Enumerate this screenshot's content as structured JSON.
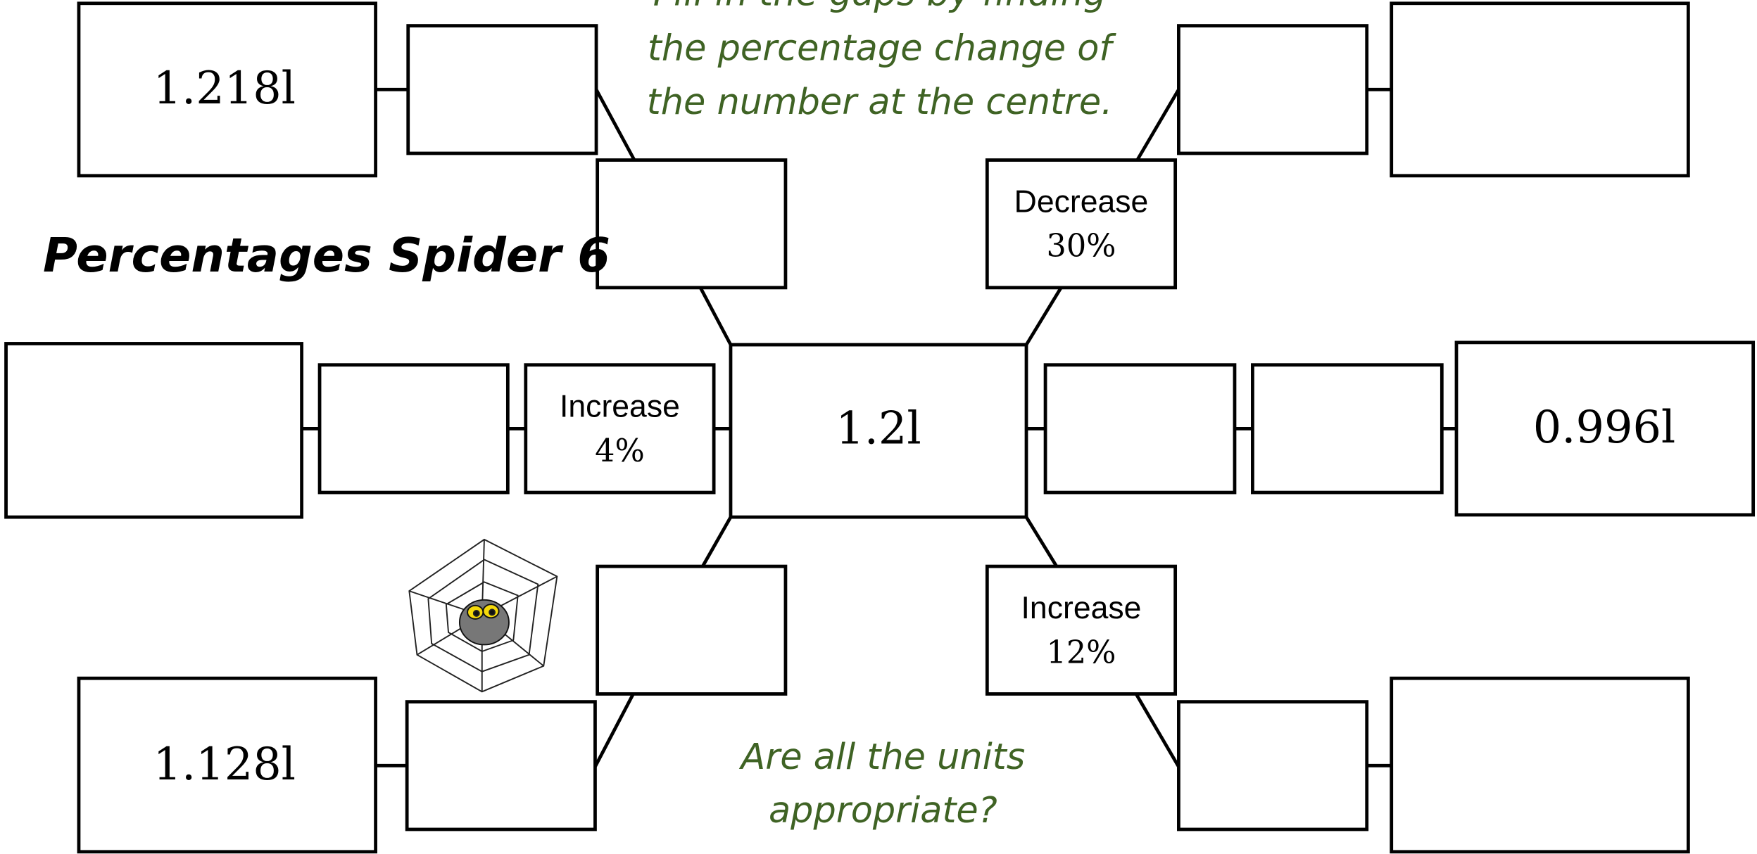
{
  "title": "Percentages Spider 6",
  "instructions": [
    "Fill in the gaps by finding",
    "the percentage change of",
    "the number at the centre."
  ],
  "question": [
    "Are all the units",
    "appropriate?"
  ],
  "centre": "1.2l",
  "top_left": {
    "answer": "1.218l"
  },
  "top_right": {
    "operation": [
      "Decrease",
      "30%"
    ]
  },
  "left": {
    "operation": [
      "Increase",
      "4%"
    ]
  },
  "right": {
    "answer": "0.996l"
  },
  "bottom_left": {
    "answer": "1.128l"
  },
  "bottom_right": {
    "operation": [
      "Increase",
      "12%"
    ]
  }
}
